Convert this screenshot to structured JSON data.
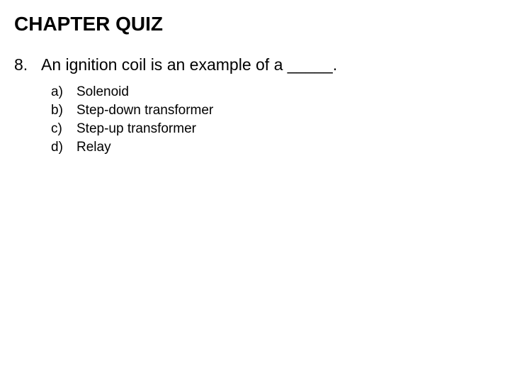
{
  "title": "CHAPTER QUIZ",
  "question": {
    "number": "8.",
    "text": "An ignition coil is an example of a _____."
  },
  "options": [
    {
      "label": "a)",
      "text": "Solenoid"
    },
    {
      "label": "b)",
      "text": "Step-down transformer"
    },
    {
      "label": "c)",
      "text": "Step-up transformer"
    },
    {
      "label": "d)",
      "text": "Relay"
    }
  ],
  "colors": {
    "background": "#ffffff",
    "text": "#000000"
  },
  "typography": {
    "title_fontsize": 28,
    "title_weight": "bold",
    "question_fontsize": 23,
    "option_fontsize": 19,
    "font_family": "Arial"
  }
}
